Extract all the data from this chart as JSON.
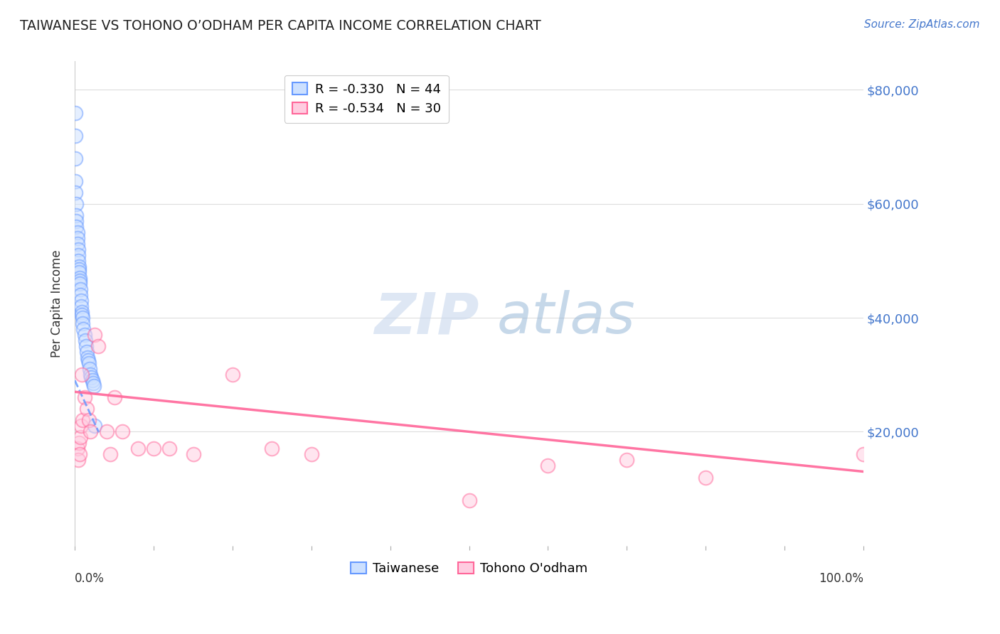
{
  "title": "TAIWANESE VS TOHONO O’ODHAM PER CAPITA INCOME CORRELATION CHART",
  "source": "Source: ZipAtlas.com",
  "ylabel": "Per Capita Income",
  "ytick_labels": [
    "$20,000",
    "$40,000",
    "$60,000",
    "$80,000"
  ],
  "ytick_values": [
    20000,
    40000,
    60000,
    80000
  ],
  "legend_line1": "R = -0.330   N = 44",
  "legend_line2": "R = -0.534   N = 30",
  "taiwanese_color": "#6699ff",
  "tohono_color": "#ff6699",
  "background_color": "#ffffff",
  "grid_color": "#dddddd",
  "taiwanese_x": [
    0.001,
    0.001,
    0.001,
    0.001,
    0.001,
    0.002,
    0.002,
    0.002,
    0.002,
    0.003,
    0.003,
    0.003,
    0.004,
    0.004,
    0.004,
    0.005,
    0.005,
    0.005,
    0.006,
    0.006,
    0.006,
    0.007,
    0.007,
    0.008,
    0.008,
    0.009,
    0.009,
    0.01,
    0.01,
    0.011,
    0.012,
    0.013,
    0.014,
    0.015,
    0.016,
    0.017,
    0.018,
    0.019,
    0.02,
    0.021,
    0.022,
    0.023,
    0.024,
    0.025
  ],
  "taiwanese_y": [
    76000,
    72000,
    68000,
    64000,
    62000,
    60000,
    58000,
    57000,
    56000,
    55000,
    54000,
    53000,
    52000,
    51000,
    50000,
    49000,
    48500,
    48000,
    47000,
    46500,
    46000,
    45000,
    44000,
    43000,
    42000,
    41000,
    40500,
    40000,
    39000,
    38000,
    37000,
    36000,
    35000,
    34000,
    33000,
    32500,
    32000,
    31000,
    30000,
    29500,
    29000,
    28500,
    28000,
    21000
  ],
  "tohono_x": [
    0.003,
    0.004,
    0.005,
    0.006,
    0.007,
    0.008,
    0.009,
    0.01,
    0.012,
    0.015,
    0.018,
    0.02,
    0.025,
    0.03,
    0.04,
    0.045,
    0.05,
    0.06,
    0.08,
    0.1,
    0.12,
    0.15,
    0.2,
    0.25,
    0.3,
    0.5,
    0.6,
    0.7,
    0.8,
    1.0
  ],
  "tohono_y": [
    17000,
    15000,
    18000,
    16000,
    19000,
    21000,
    30000,
    22000,
    26000,
    24000,
    22000,
    20000,
    37000,
    35000,
    20000,
    16000,
    26000,
    20000,
    17000,
    17000,
    17000,
    16000,
    30000,
    17000,
    16000,
    8000,
    14000,
    15000,
    12000,
    16000
  ],
  "taiwanese_trend_x": [
    0.0,
    0.03
  ],
  "taiwanese_trend_y": [
    29000,
    20000
  ],
  "tohono_trend_x": [
    0.0,
    1.0
  ],
  "tohono_trend_y": [
    27000,
    13000
  ],
  "xlim": [
    0.0,
    1.0
  ],
  "ylim": [
    0,
    85000
  ]
}
